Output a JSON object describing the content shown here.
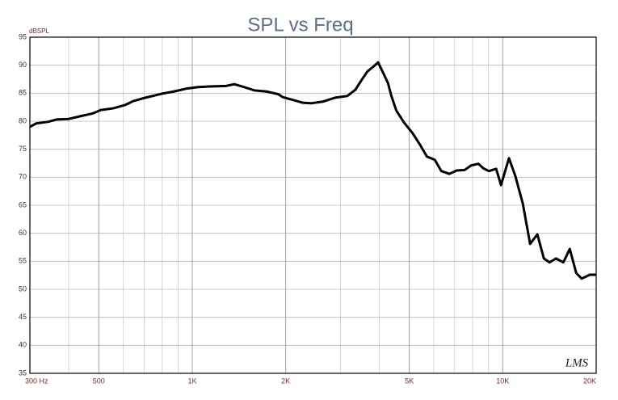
{
  "chart_data": {
    "type": "line",
    "title": "SPL vs Freq",
    "ylabel": "dBSPL",
    "watermark": "LMS",
    "xscale": "log",
    "xlim": [
      300,
      20000
    ],
    "xticks": [
      {
        "value": 300,
        "label": "300 Hz"
      },
      500,
      {
        "value": 1000,
        "label": "1K"
      },
      {
        "value": 2000,
        "label": "2K"
      },
      {
        "value": 5000,
        "label": "5K"
      },
      {
        "value": 10000,
        "label": "10K"
      },
      {
        "value": 20000,
        "label": "20K"
      }
    ],
    "ylim": [
      35,
      95
    ],
    "yticks": [
      35,
      40,
      45,
      50,
      55,
      60,
      65,
      70,
      75,
      80,
      85,
      90,
      95
    ],
    "grid": true,
    "minor_grid": true,
    "x": [
      300,
      314,
      344,
      365,
      400,
      437,
      479,
      508,
      556,
      608,
      646,
      707,
      797,
      872,
      954,
      1043,
      1141,
      1286,
      1365,
      1450,
      1586,
      1735,
      1897,
      1955,
      2139,
      2271,
      2411,
      2638,
      2885,
      3157,
      3352,
      3497,
      3668,
      3825,
      3969,
      4114,
      4271,
      4374,
      4543,
      4819,
      5119,
      5430,
      5697,
      6046,
      6342,
      6733,
      7103,
      7544,
      7913,
      8352,
      8657,
      9028,
      9524,
      9874,
      10474,
      10983,
      11606,
      12251,
      12930,
      13566,
      14150,
      14847,
      15672,
      16441,
      17250,
      17958,
      19069,
      20000
    ],
    "series": [
      {
        "color": "#000000",
        "values": [
          79.0,
          79.6,
          79.9,
          80.3,
          80.4,
          80.9,
          81.4,
          82.0,
          82.3,
          82.9,
          83.6,
          84.2,
          84.9,
          85.3,
          85.8,
          86.1,
          86.2,
          86.3,
          86.6,
          86.2,
          85.5,
          85.3,
          84.8,
          84.3,
          83.7,
          83.3,
          83.2,
          83.5,
          84.2,
          84.5,
          85.6,
          87.2,
          88.9,
          89.7,
          90.5,
          88.7,
          86.8,
          84.6,
          81.9,
          79.7,
          77.9,
          75.7,
          73.7,
          73.1,
          71.1,
          70.6,
          71.2,
          71.3,
          72.1,
          72.4,
          71.6,
          71.1,
          71.5,
          68.6,
          73.4,
          70.2,
          65.3,
          58.1,
          59.8,
          55.5,
          54.8,
          55.5,
          54.8,
          57.2,
          52.9,
          51.9,
          52.6,
          52.6
        ]
      }
    ]
  }
}
